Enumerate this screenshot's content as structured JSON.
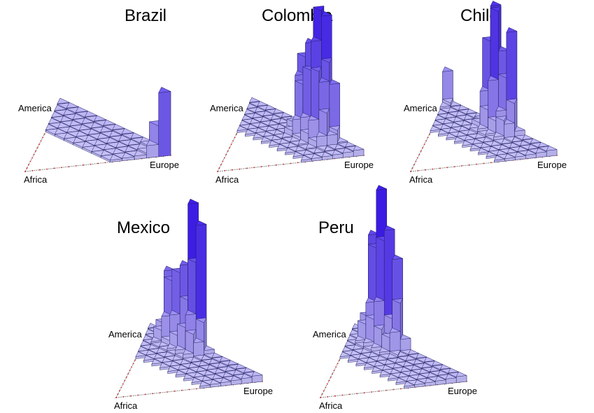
{
  "chart_data": [
    {
      "type": "bar",
      "title": "Brazil",
      "corner_labels": {
        "america": "America",
        "africa": "Africa",
        "europe": "Europe"
      },
      "grid_size": 12,
      "max_height": 0.8,
      "peaks": [
        {
          "american": 0.0,
          "european": 1.0,
          "height": 0.8
        },
        {
          "american": 0.05,
          "european": 0.95,
          "height": 0.45
        },
        {
          "american": 0.1,
          "european": 0.9,
          "height": 0.12
        }
      ]
    },
    {
      "type": "bar",
      "title": "Colombia",
      "corner_labels": {
        "america": "America",
        "africa": "Africa",
        "europe": "Europe"
      },
      "grid_size": 14,
      "max_height": 0.9,
      "peaks": [
        {
          "american": 0.35,
          "european": 0.6,
          "height": 0.9
        },
        {
          "american": 0.3,
          "european": 0.65,
          "height": 0.8
        },
        {
          "american": 0.45,
          "european": 0.5,
          "height": 0.6
        },
        {
          "american": 0.25,
          "european": 0.7,
          "height": 0.5
        }
      ]
    },
    {
      "type": "bar",
      "title": "Chile",
      "corner_labels": {
        "america": "America",
        "africa": "Africa",
        "europe": "Europe"
      },
      "grid_size": 14,
      "max_height": 1.0,
      "peaks": [
        {
          "american": 0.5,
          "european": 0.5,
          "height": 1.0
        },
        {
          "american": 0.55,
          "european": 0.45,
          "height": 0.9
        },
        {
          "american": 0.4,
          "european": 0.6,
          "height": 0.7
        },
        {
          "american": 1.0,
          "european": 0.0,
          "height": 0.4
        }
      ]
    },
    {
      "type": "bar",
      "title": "Mexico",
      "corner_labels": {
        "america": "America",
        "africa": "Africa",
        "europe": "Europe"
      },
      "grid_size": 14,
      "max_height": 0.9,
      "peaks": [
        {
          "american": 0.6,
          "european": 0.4,
          "height": 0.9
        },
        {
          "american": 0.55,
          "european": 0.45,
          "height": 0.85
        },
        {
          "american": 0.7,
          "european": 0.3,
          "height": 0.6
        },
        {
          "american": 0.8,
          "european": 0.2,
          "height": 0.5
        }
      ]
    },
    {
      "type": "bar",
      "title": "Peru",
      "corner_labels": {
        "america": "America",
        "africa": "Africa",
        "europe": "Europe"
      },
      "grid_size": 14,
      "max_height": 1.0,
      "peaks": [
        {
          "american": 0.75,
          "european": 0.25,
          "height": 1.0
        },
        {
          "american": 0.7,
          "european": 0.3,
          "height": 0.95
        },
        {
          "american": 0.8,
          "european": 0.2,
          "height": 0.85
        },
        {
          "american": 0.6,
          "european": 0.4,
          "height": 0.6
        }
      ]
    }
  ],
  "colors": {
    "bar_light": "#c9c5f5",
    "bar_dark": "#3a18ee",
    "outline": "#1a1a5a",
    "edge": "#8a8a8a",
    "tick": "#cc2222"
  }
}
